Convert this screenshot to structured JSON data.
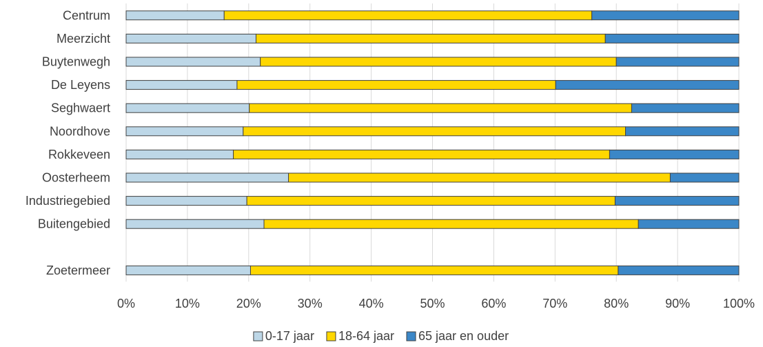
{
  "chart_data": {
    "type": "bar",
    "orientation": "horizontal",
    "stacked": "percent",
    "categories": [
      "Centrum",
      "Meerzicht",
      "Buytenwegh",
      "De Leyens",
      "Seghwaert",
      "Noordhove",
      "Rokkeveen",
      "Oosterheem",
      "Industriegebied",
      "Buitengebied",
      "",
      "Zoetermeer"
    ],
    "series": [
      {
        "name": "0-17 jaar",
        "color": "#bdd7e7",
        "values": [
          16,
          21.2,
          21.9,
          18.1,
          20.1,
          19.1,
          17.5,
          26.5,
          19.7,
          22.5,
          null,
          20.3
        ]
      },
      {
        "name": "18-64 jaar",
        "color": "#ffd700",
        "values": [
          60,
          57,
          58.1,
          52,
          62.4,
          62.4,
          61.4,
          62.3,
          60.1,
          61.1,
          null,
          60
        ]
      },
      {
        "name": "65 jaar en ouder",
        "color": "#3b87c7",
        "values": [
          24,
          21.8,
          20,
          29.9,
          17.5,
          18.5,
          21.1,
          11.2,
          20.2,
          16.4,
          null,
          19.7
        ]
      }
    ],
    "xlim": [
      0,
      100
    ],
    "x_ticks": [
      "0%",
      "10%",
      "20%",
      "30%",
      "40%",
      "50%",
      "60%",
      "70%",
      "80%",
      "90%",
      "100%"
    ],
    "grid": "vertical",
    "legend_position": "bottom",
    "title": "",
    "xlabel": "",
    "ylabel": ""
  }
}
